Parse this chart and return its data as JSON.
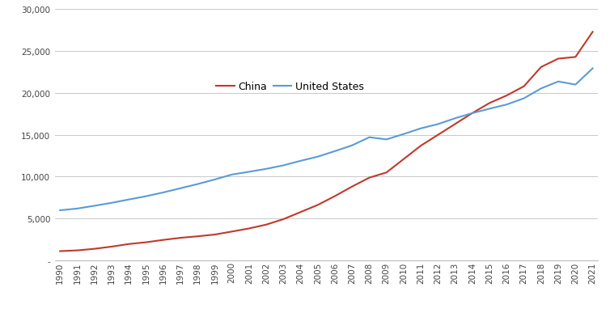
{
  "years": [
    1990,
    1991,
    1992,
    1993,
    1994,
    1995,
    1996,
    1997,
    1998,
    1999,
    2000,
    2001,
    2002,
    2003,
    2004,
    2005,
    2006,
    2007,
    2008,
    2009,
    2010,
    2011,
    2012,
    2013,
    2014,
    2015,
    2016,
    2017,
    2018,
    2019,
    2020,
    2021
  ],
  "china": [
    1100,
    1190,
    1380,
    1640,
    1950,
    2160,
    2440,
    2690,
    2870,
    3080,
    3440,
    3810,
    4270,
    4920,
    5770,
    6620,
    7680,
    8820,
    9880,
    10500,
    12100,
    13700,
    15000,
    16300,
    17600,
    18800,
    19700,
    20800,
    23100,
    24100,
    24300,
    27300
  ],
  "us": [
    5980,
    6190,
    6520,
    6870,
    7270,
    7660,
    8110,
    8610,
    9110,
    9660,
    10250,
    10580,
    10930,
    11350,
    11890,
    12390,
    13050,
    13740,
    14710,
    14450,
    15090,
    15770,
    16280,
    16980,
    17590,
    18120,
    18620,
    19360,
    20540,
    21370,
    21000,
    22940
  ],
  "china_color": "#c0392b",
  "us_color": "#5b9bd5",
  "china_label": "China",
  "us_label": "United States",
  "ylim": [
    0,
    30000
  ],
  "yticks": [
    0,
    5000,
    10000,
    15000,
    20000,
    25000,
    30000
  ],
  "background_color": "#ffffff",
  "grid_color": "#c8c8c8",
  "line_width": 1.5,
  "legend_fontsize": 9,
  "tick_fontsize": 7.5
}
